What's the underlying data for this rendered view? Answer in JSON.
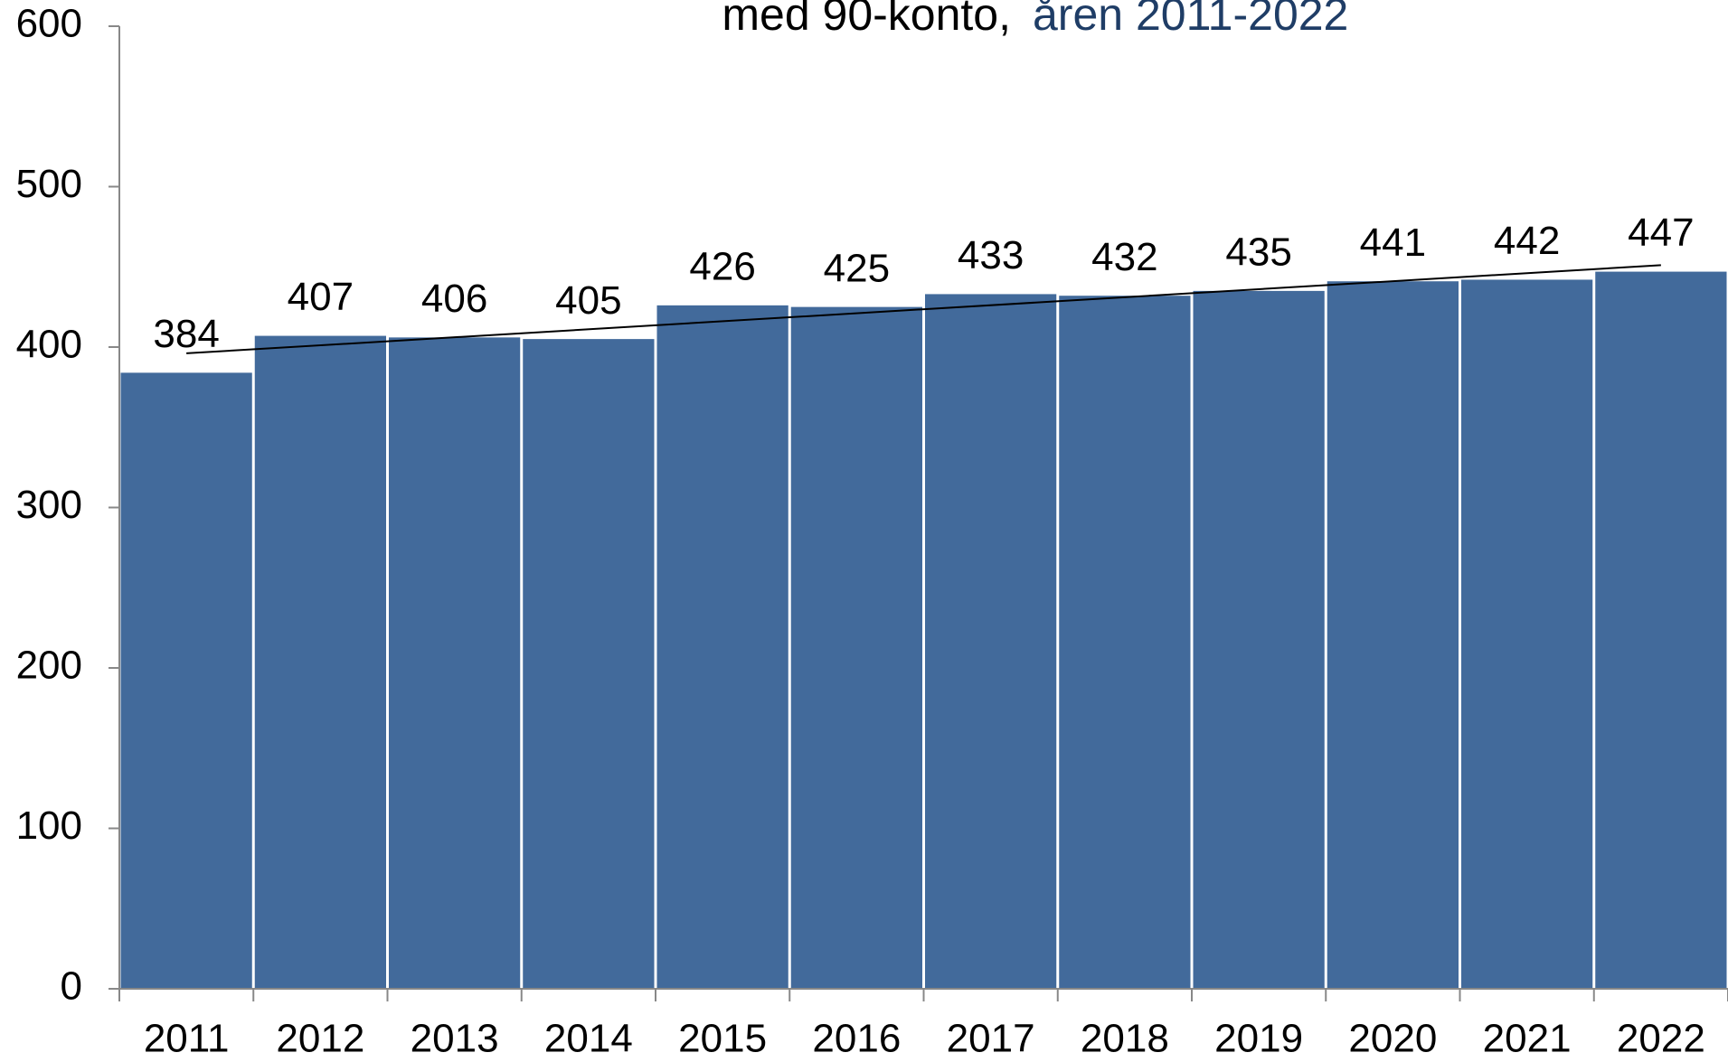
{
  "chart_data": {
    "type": "bar",
    "title": "med 90-konto,",
    "subtitle": "åren 2011-2022",
    "categories": [
      "2011",
      "2012",
      "2013",
      "2014",
      "2015",
      "2016",
      "2017",
      "2018",
      "2019",
      "2020",
      "2021",
      "2022"
    ],
    "values": [
      384,
      407,
      406,
      405,
      426,
      425,
      433,
      432,
      435,
      441,
      442,
      447
    ],
    "color": "#426a9b",
    "subtitle_color": "#1f3d66",
    "ylim": [
      0,
      600
    ],
    "yticks": [
      0,
      100,
      200,
      300,
      400,
      500,
      600
    ],
    "grid": false,
    "trendline": true
  }
}
